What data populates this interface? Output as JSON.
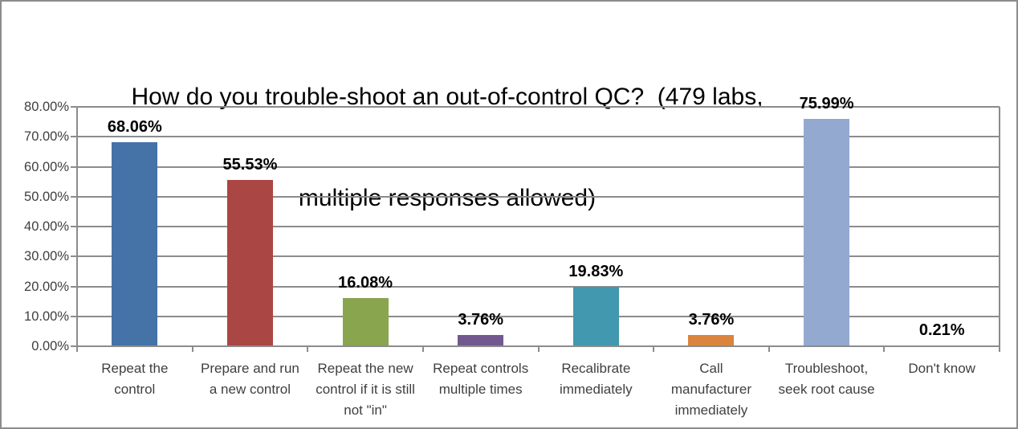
{
  "frame": {
    "background_color": "#FFFFFF",
    "border_color": "#8C8C8C"
  },
  "chart_data": {
    "type": "bar",
    "title": "How do you trouble-shoot an out-of-control QC?  (479 labs, multiple responses allowed)",
    "title_lines": [
      "How do you trouble-shoot an out-of-control QC?  (479 labs,",
      "multiple responses allowed)"
    ],
    "categories": [
      "Repeat the control",
      "Prepare and run a new control",
      "Repeat the new control if it is still not \"in\"",
      "Repeat controls multiple times",
      "Recalibrate immediately",
      "Call manufacturer immediately",
      "Troubleshoot, seek root cause",
      "Don't know"
    ],
    "values": [
      68.06,
      55.53,
      16.08,
      3.76,
      19.83,
      3.76,
      75.99,
      0.21
    ],
    "value_labels": [
      "68.06%",
      "55.53%",
      "16.08%",
      "3.76%",
      "19.83%",
      "3.76%",
      "75.99%",
      "0.21%"
    ],
    "bar_colors": [
      "#4572A7",
      "#AA4643",
      "#89A54E",
      "#71588F",
      "#4198AF",
      "#DB843D",
      "#93A9CF",
      "#D19392"
    ],
    "xlabel": "",
    "ylabel": "",
    "ylim": [
      0,
      80
    ],
    "y_tick_step": 10,
    "y_tick_labels": [
      "0.00%",
      "10.00%",
      "20.00%",
      "30.00%",
      "40.00%",
      "50.00%",
      "60.00%",
      "70.00%",
      "80.00%"
    ],
    "grid": true,
    "legend": "none",
    "gridline_color": "#8C8C8C",
    "axis_color": "#8C8C8C",
    "text_color": "#3F3F3F",
    "value_label_color": "#000000"
  }
}
